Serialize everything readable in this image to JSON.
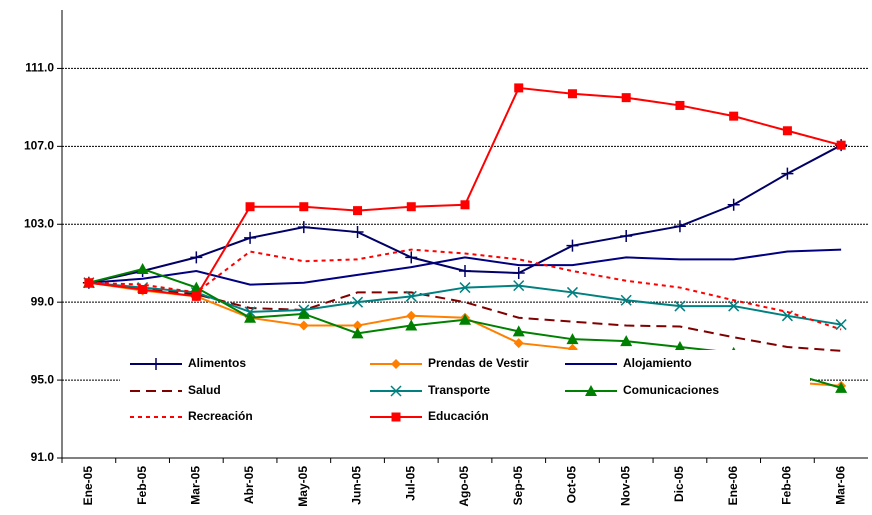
{
  "chart_data": {
    "type": "line",
    "categories": [
      "Ene-05",
      "Feb-05",
      "Mar-05",
      "Abr-05",
      "May-05",
      "Jun-05",
      "Jul-05",
      "Ago-05",
      "Sep-05",
      "Oct-05",
      "Nov-05",
      "Dic-05",
      "Ene-06",
      "Feb-06",
      "Mar-06"
    ],
    "ylim": [
      91,
      114
    ],
    "yticks": [
      {
        "value": 91,
        "label": "91.0"
      },
      {
        "value": 95,
        "label": "95.0"
      },
      {
        "value": 99,
        "label": "99.0"
      },
      {
        "value": 103,
        "label": "103.0"
      },
      {
        "value": 107,
        "label": "107.0"
      },
      {
        "value": 111,
        "label": "111.0"
      }
    ],
    "grid": true,
    "series": [
      {
        "name": "Alimentos",
        "color": "#000066",
        "marker": "plus",
        "dash": "solid",
        "values": [
          100.0,
          100.6,
          101.3,
          102.3,
          102.85,
          102.6,
          101.3,
          100.6,
          100.5,
          101.9,
          102.4,
          102.9,
          104.0,
          105.6,
          107.06
        ]
      },
      {
        "name": "Prendas de Vestir",
        "color": "#ff8000",
        "marker": "diamond",
        "dash": "solid",
        "values": [
          100.0,
          99.6,
          99.3,
          98.2,
          97.8,
          97.8,
          98.3,
          98.2,
          96.9,
          96.6,
          95.7,
          95.4,
          95.0,
          94.9,
          94.7
        ]
      },
      {
        "name": "Alojamiento",
        "color": "#000080",
        "marker": "none",
        "dash": "solid",
        "values": [
          100.0,
          100.2,
          100.6,
          99.9,
          100.0,
          100.4,
          100.8,
          101.3,
          100.9,
          100.9,
          101.3,
          101.2,
          101.2,
          101.6,
          101.7
        ]
      },
      {
        "name": "Salud",
        "color": "#800000",
        "marker": "none",
        "dash": "dashed",
        "values": [
          100.0,
          99.7,
          99.4,
          98.7,
          98.6,
          99.5,
          99.5,
          99.0,
          98.2,
          98.0,
          97.8,
          97.75,
          97.2,
          96.7,
          96.5
        ]
      },
      {
        "name": "Transporte",
        "color": "#008080",
        "marker": "x",
        "dash": "solid",
        "values": [
          100.0,
          99.75,
          99.5,
          98.5,
          98.6,
          99.0,
          99.3,
          99.75,
          99.85,
          99.5,
          99.1,
          98.8,
          98.8,
          98.3,
          97.85
        ]
      },
      {
        "name": "Comunicaciones",
        "color": "#008000",
        "marker": "triangle",
        "dash": "solid",
        "values": [
          100.0,
          100.7,
          99.75,
          98.2,
          98.4,
          97.4,
          97.8,
          98.1,
          97.5,
          97.1,
          97.0,
          96.7,
          96.4,
          95.4,
          94.6
        ]
      },
      {
        "name": "Recreación",
        "color": "#ff0000",
        "marker": "none",
        "dash": "dotted",
        "values": [
          100.0,
          99.9,
          99.5,
          101.6,
          101.1,
          101.2,
          101.7,
          101.5,
          101.2,
          100.6,
          100.1,
          99.75,
          99.1,
          98.5,
          97.6
        ]
      },
      {
        "name": "Educación",
        "color": "#ff0000",
        "marker": "square",
        "dash": "solid",
        "values": [
          100.0,
          99.65,
          99.3,
          103.9,
          103.9,
          103.7,
          103.9,
          104.0,
          110.0,
          109.7,
          109.5,
          109.1,
          108.55,
          107.8,
          107.06
        ]
      }
    ]
  }
}
